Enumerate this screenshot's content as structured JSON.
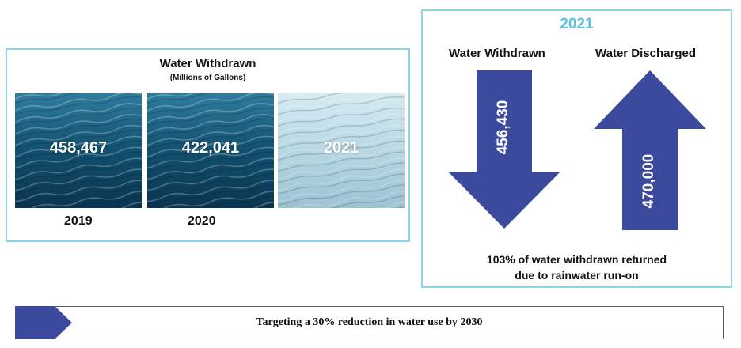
{
  "left_panel": {
    "title": "Water Withdrawn",
    "subtitle": "(Millions of Gallons)",
    "tiles": [
      {
        "value": "458,467",
        "year": "2019"
      },
      {
        "value": "422,041",
        "year": "2020"
      },
      {
        "value": "2021",
        "year": ""
      }
    ]
  },
  "right_panel": {
    "year": "2021",
    "withdrawn_label": "Water Withdrawn",
    "discharged_label": "Water Discharged",
    "withdrawn_value": "456,430",
    "discharged_value": "470,000",
    "note_line1": "103% of water withdrawn returned",
    "note_line2": "due to rainwater run-on"
  },
  "banner": {
    "text": "Targeting a 30% reduction in water use by 2030"
  },
  "colors": {
    "accent_border": "#8fd3e6",
    "year_title": "#5bc3e0",
    "arrow_fill": "#3c4a9e",
    "water_dark": "#0f4f6e",
    "water_light": "#c2dde6"
  }
}
